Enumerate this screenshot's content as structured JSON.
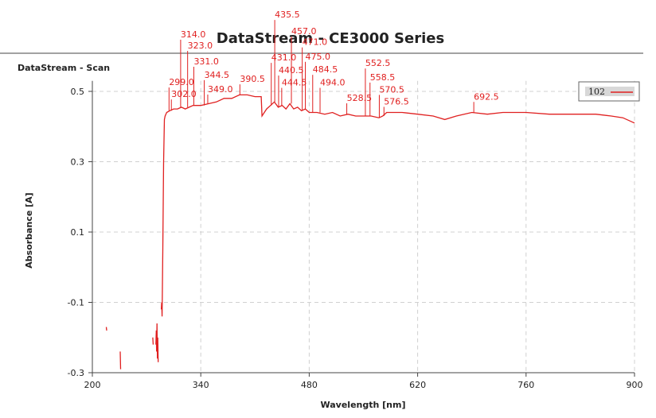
{
  "window_title": "DataStream - CE3000 Series",
  "chart_data": {
    "type": "line",
    "title": "DataStream - Scan",
    "xlabel": "Wavelength [nm]",
    "ylabel": "Absorbance [A]",
    "xlim": [
      200,
      900
    ],
    "ylim": [
      -0.3,
      0.53
    ],
    "xticks": [
      200,
      340,
      480,
      620,
      760,
      900
    ],
    "yticks": [
      -0.3,
      -0.1,
      0.1,
      0.3,
      0.5
    ],
    "grid": true,
    "legend": "top-right",
    "series": [
      {
        "name": "102",
        "color": "#e02020",
        "x": [
          218,
          218.5,
          219,
          236,
          236.5,
          237,
          278,
          278.5,
          279,
          282,
          282.5,
          283,
          283.5,
          284,
          284.5,
          285,
          285.5,
          289,
          289.5,
          290,
          291,
          292,
          293,
          294,
          296,
          300,
          305,
          310,
          315,
          320,
          325,
          330,
          340,
          350,
          360,
          370,
          380,
          390,
          400,
          410,
          418,
          419,
          425,
          430,
          435,
          440,
          445,
          450,
          455,
          460,
          465,
          470,
          475,
          480,
          490,
          500,
          510,
          520,
          530,
          540,
          550,
          560,
          570,
          575,
          580,
          600,
          620,
          640,
          655,
          670,
          690,
          710,
          730,
          760,
          790,
          820,
          850,
          870,
          885,
          900
        ],
        "values": [
          -0.17,
          -0.18,
          null,
          -0.24,
          -0.29,
          null,
          -0.2,
          -0.22,
          null,
          -0.22,
          -0.18,
          -0.24,
          -0.16,
          -0.26,
          -0.2,
          -0.27,
          null,
          -0.12,
          -0.1,
          -0.14,
          0.05,
          0.3,
          0.42,
          0.43,
          0.44,
          0.445,
          0.45,
          0.45,
          0.455,
          0.45,
          0.455,
          0.46,
          0.46,
          0.465,
          0.47,
          0.48,
          0.48,
          0.49,
          0.49,
          0.485,
          0.485,
          0.43,
          0.45,
          0.46,
          0.47,
          0.455,
          0.46,
          0.45,
          0.465,
          0.45,
          0.455,
          0.445,
          0.45,
          0.44,
          0.44,
          0.435,
          0.44,
          0.43,
          0.435,
          0.43,
          0.43,
          0.43,
          0.425,
          0.43,
          0.44,
          0.44,
          0.435,
          0.43,
          0.42,
          0.43,
          0.44,
          0.435,
          0.44,
          0.44,
          0.435,
          0.435,
          0.435,
          0.43,
          0.425,
          0.41
        ]
      }
    ],
    "peaks": [
      {
        "x": 299,
        "label": "299.0",
        "y": 0.511
      },
      {
        "x": 302,
        "label": "302.0",
        "y": 0.477
      },
      {
        "x": 314,
        "label": "314.0",
        "y": 0.647
      },
      {
        "x": 323,
        "label": "323.0",
        "y": 0.615
      },
      {
        "x": 331,
        "label": "331.0",
        "y": 0.57
      },
      {
        "x": 344.5,
        "label": "344.5",
        "y": 0.532
      },
      {
        "x": 349,
        "label": "349.0",
        "y": 0.491
      },
      {
        "x": 390.5,
        "label": "390.5",
        "y": 0.52
      },
      {
        "x": 431,
        "label": "431.0",
        "y": 0.581
      },
      {
        "x": 435.5,
        "label": "435.5",
        "y": 0.703
      },
      {
        "x": 440.5,
        "label": "440.5",
        "y": 0.545
      },
      {
        "x": 444.5,
        "label": "444.5",
        "y": 0.51
      },
      {
        "x": 457,
        "label": "457.0",
        "y": 0.656
      },
      {
        "x": 471,
        "label": "471.0",
        "y": 0.625
      },
      {
        "x": 475,
        "label": "475.0",
        "y": 0.584
      },
      {
        "x": 484.5,
        "label": "484.5",
        "y": 0.547
      },
      {
        "x": 494,
        "label": "494.0",
        "y": 0.51
      },
      {
        "x": 528.5,
        "label": "528.5",
        "y": 0.466
      },
      {
        "x": 552.5,
        "label": "552.5",
        "y": 0.565
      },
      {
        "x": 558.5,
        "label": "558.5",
        "y": 0.525
      },
      {
        "x": 570.5,
        "label": "570.5",
        "y": 0.49
      },
      {
        "x": 576.5,
        "label": "576.5",
        "y": 0.456
      },
      {
        "x": 692.5,
        "label": "692.5",
        "y": 0.47
      }
    ]
  }
}
